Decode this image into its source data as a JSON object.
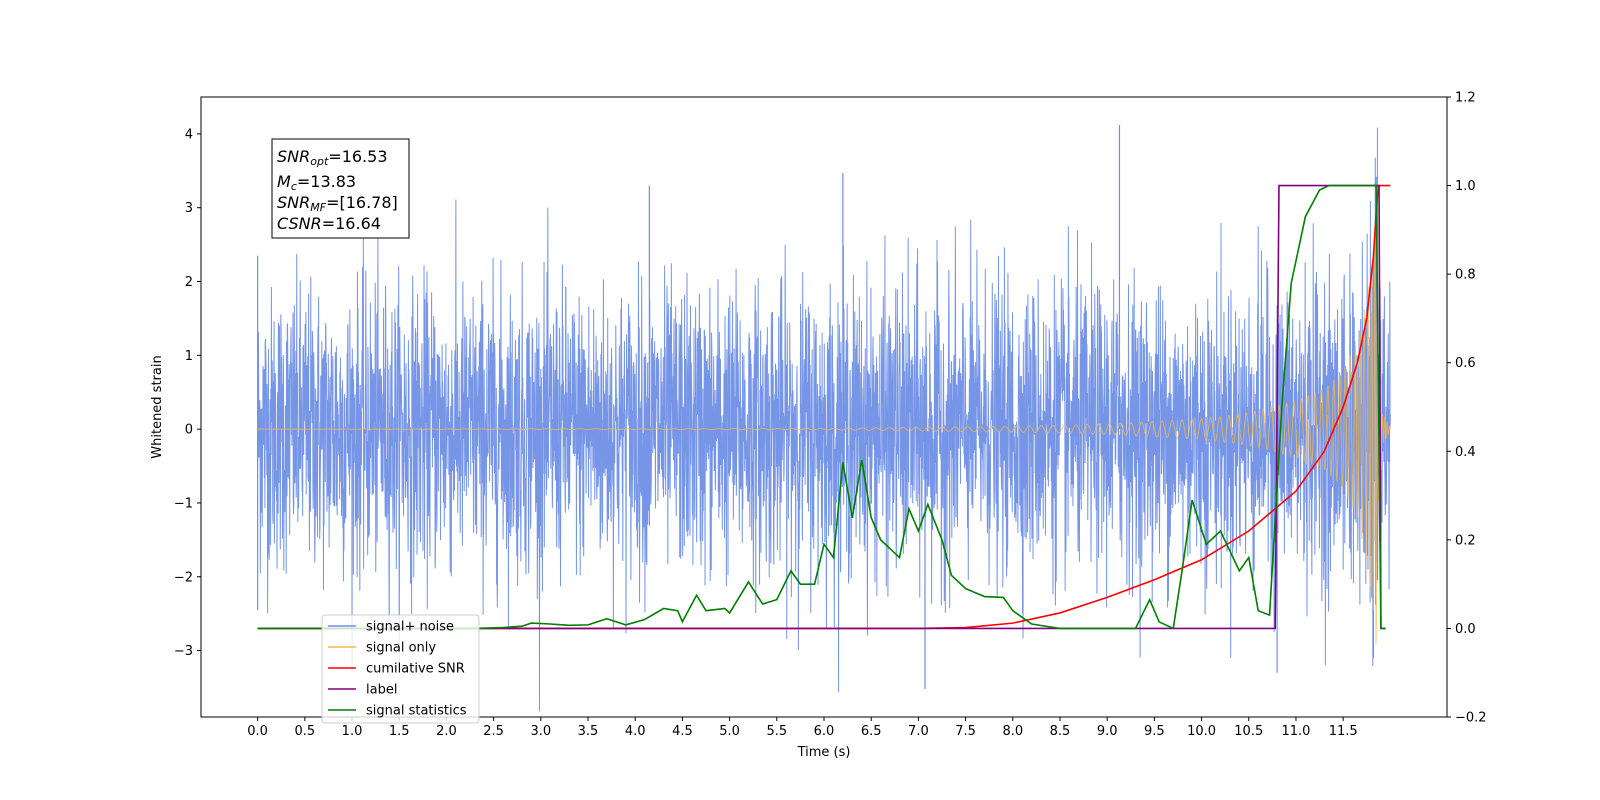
{
  "chart_data": {
    "type": "line",
    "xlabel": "Time (s)",
    "ylabel": "Whitened strain",
    "xlim": [
      -0.6,
      12.6
    ],
    "ylim": [
      -3.9,
      4.5
    ],
    "ylim_right": [
      -0.2,
      1.2
    ],
    "x_ticks": [
      "0.0",
      "0.5",
      "1.0",
      "1.5",
      "2.0",
      "2.5",
      "3.0",
      "3.5",
      "4.0",
      "4.5",
      "5.0",
      "5.5",
      "6.0",
      "6.5",
      "7.0",
      "7.5",
      "8.0",
      "8.5",
      "9.0",
      "9.5",
      "10.0",
      "10.5",
      "11.0",
      "11.5"
    ],
    "y_ticks_left": [
      "−3",
      "−2",
      "−1",
      "0",
      "1",
      "2",
      "3",
      "4"
    ],
    "y_ticks_right": [
      "−0.2",
      "0.0",
      "0.2",
      "0.4",
      "0.6",
      "0.8",
      "1.0",
      "1.2"
    ],
    "legend_position": "lower-left",
    "info_box": {
      "snr_opt": {
        "sym": "SNR",
        "sub": "opt",
        "value": "=16.53"
      },
      "mc": {
        "sym": "M",
        "sub": "c",
        "value": "=13.83"
      },
      "snr_mf": {
        "sym": "SNR",
        "sub": "MF",
        "value": "=[16.78]"
      },
      "csnr": {
        "sym": "CSNR",
        "sub": "",
        "value": "=16.64"
      }
    },
    "series": [
      {
        "name": "signal+ noise",
        "color": "#6f8fe6",
        "axis": "left",
        "description_kind": "noise",
        "envelope_peaks": [
          [
            9.13,
            4.12
          ],
          [
            11.85,
            3.42
          ],
          [
            6.2,
            3.47
          ],
          [
            4.15,
            3.3
          ],
          [
            7.07,
            -3.52
          ],
          [
            10.8,
            -3.3
          ],
          [
            11.82,
            -3.1
          ],
          [
            0.0,
            2.35
          ],
          [
            0.0,
            -2.45
          ]
        ]
      },
      {
        "name": "signal only",
        "color": "#f5b94a",
        "axis": "left",
        "envelope": [
          [
            0.0,
            0.0
          ],
          [
            6.0,
            0.01
          ],
          [
            8.0,
            0.04
          ],
          [
            9.0,
            0.07
          ],
          [
            10.0,
            0.14
          ],
          [
            10.5,
            0.22
          ],
          [
            11.0,
            0.38
          ],
          [
            11.3,
            0.55
          ],
          [
            11.5,
            0.8
          ],
          [
            11.65,
            1.2
          ],
          [
            11.75,
            1.8
          ],
          [
            11.82,
            2.5
          ],
          [
            11.86,
            3.3
          ],
          [
            11.88,
            0.3
          ],
          [
            12.0,
            0.03
          ]
        ]
      },
      {
        "name": "cumilative SNR",
        "color": "#ff0000",
        "axis": "right",
        "points": [
          [
            0.0,
            0.0
          ],
          [
            7.0,
            0.0
          ],
          [
            7.5,
            0.002
          ],
          [
            8.0,
            0.012
          ],
          [
            8.5,
            0.035
          ],
          [
            9.0,
            0.07
          ],
          [
            9.5,
            0.11
          ],
          [
            10.0,
            0.155
          ],
          [
            10.5,
            0.22
          ],
          [
            11.0,
            0.31
          ],
          [
            11.3,
            0.4
          ],
          [
            11.5,
            0.5
          ],
          [
            11.65,
            0.6
          ],
          [
            11.75,
            0.7
          ],
          [
            11.82,
            0.84
          ],
          [
            11.86,
            0.97
          ],
          [
            11.88,
            1.0
          ],
          [
            12.0,
            1.0
          ]
        ]
      },
      {
        "name": "label",
        "color": "#800080",
        "axis": "right",
        "points": [
          [
            0.0,
            0.0
          ],
          [
            10.78,
            0.0
          ],
          [
            10.82,
            1.0
          ],
          [
            11.88,
            1.0
          ],
          [
            11.9,
            0.0
          ],
          [
            11.95,
            0.0
          ]
        ]
      },
      {
        "name": "signal statistics",
        "color": "#008000",
        "axis": "right",
        "points": [
          [
            0.0,
            0.0
          ],
          [
            2.3,
            0.0
          ],
          [
            2.6,
            0.002
          ],
          [
            2.8,
            0.005
          ],
          [
            2.9,
            0.012
          ],
          [
            3.1,
            0.01
          ],
          [
            3.3,
            0.007
          ],
          [
            3.5,
            0.008
          ],
          [
            3.7,
            0.022
          ],
          [
            3.9,
            0.008
          ],
          [
            4.1,
            0.02
          ],
          [
            4.3,
            0.045
          ],
          [
            4.45,
            0.04
          ],
          [
            4.5,
            0.015
          ],
          [
            4.65,
            0.075
          ],
          [
            4.75,
            0.04
          ],
          [
            4.95,
            0.045
          ],
          [
            5.0,
            0.035
          ],
          [
            5.2,
            0.105
          ],
          [
            5.35,
            0.055
          ],
          [
            5.5,
            0.065
          ],
          [
            5.65,
            0.13
          ],
          [
            5.75,
            0.1
          ],
          [
            5.9,
            0.1
          ],
          [
            6.0,
            0.19
          ],
          [
            6.1,
            0.16
          ],
          [
            6.2,
            0.375
          ],
          [
            6.3,
            0.25
          ],
          [
            6.4,
            0.38
          ],
          [
            6.5,
            0.25
          ],
          [
            6.6,
            0.2
          ],
          [
            6.8,
            0.16
          ],
          [
            6.9,
            0.27
          ],
          [
            7.0,
            0.22
          ],
          [
            7.1,
            0.28
          ],
          [
            7.25,
            0.2
          ],
          [
            7.35,
            0.12
          ],
          [
            7.5,
            0.09
          ],
          [
            7.7,
            0.072
          ],
          [
            7.9,
            0.07
          ],
          [
            8.0,
            0.04
          ],
          [
            8.2,
            0.01
          ],
          [
            8.5,
            0.0
          ],
          [
            9.3,
            0.0
          ],
          [
            9.45,
            0.065
          ],
          [
            9.55,
            0.015
          ],
          [
            9.7,
            0.0
          ],
          [
            9.8,
            0.14
          ],
          [
            9.9,
            0.29
          ],
          [
            10.05,
            0.19
          ],
          [
            10.2,
            0.22
          ],
          [
            10.4,
            0.13
          ],
          [
            10.5,
            0.16
          ],
          [
            10.6,
            0.04
          ],
          [
            10.72,
            0.03
          ],
          [
            10.85,
            0.5
          ],
          [
            10.95,
            0.78
          ],
          [
            11.1,
            0.93
          ],
          [
            11.25,
            0.99
          ],
          [
            11.35,
            1.0
          ],
          [
            11.85,
            1.0
          ],
          [
            11.9,
            0.0
          ],
          [
            11.95,
            0.0
          ]
        ]
      }
    ]
  }
}
